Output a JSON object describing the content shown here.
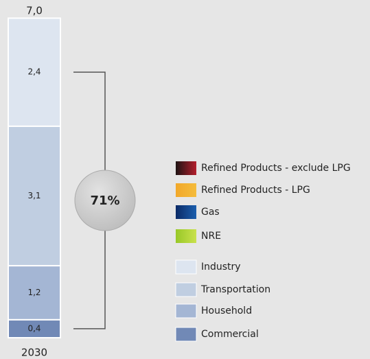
{
  "chart_data": {
    "type": "stacked_bar",
    "categories": [
      "2030"
    ],
    "series": [
      {
        "name": "Commercial",
        "color": "#7189b6",
        "values": [
          0.4
        ],
        "value_labels": [
          "0,4"
        ]
      },
      {
        "name": "Household",
        "color": "#a4b6d4",
        "values": [
          1.2
        ],
        "value_labels": [
          "1,2"
        ]
      },
      {
        "name": "Transportation",
        "color": "#c0cee1",
        "values": [
          3.1
        ],
        "value_labels": [
          "3,1"
        ]
      },
      {
        "name": "Industry",
        "color": "#dde5f0",
        "values": [
          2.4
        ],
        "value_labels": [
          "2,4"
        ]
      }
    ],
    "totals": [
      7.0
    ],
    "total_labels": [
      "7,0"
    ],
    "annotation": "71%",
    "legend_extra": [
      {
        "name": "Refined Products - exclude LPG",
        "colors": [
          "#1e1414",
          "#b31e2c"
        ]
      },
      {
        "name": "Refined Products - LPG",
        "colors": [
          "#f2a82a",
          "#f4bc3c"
        ]
      },
      {
        "name": "Gas",
        "colors": [
          "#0b2a66",
          "#1b5fae"
        ]
      },
      {
        "name": "NRE",
        "colors": [
          "#98c828",
          "#c9e14c"
        ]
      }
    ]
  }
}
